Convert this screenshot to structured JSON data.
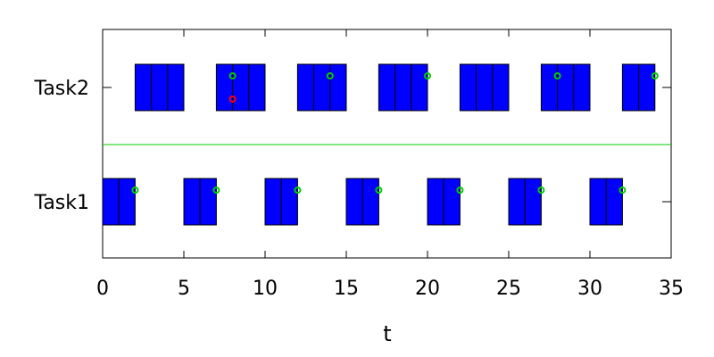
{
  "chart_data": {
    "type": "gantt",
    "title": "",
    "xlabel": "t",
    "ylabel": "",
    "xlim": [
      0,
      35
    ],
    "xticks": [
      0,
      5,
      10,
      15,
      20,
      25,
      30,
      35
    ],
    "grid": false,
    "legend": "none",
    "tasks": [
      "Task1",
      "Task2"
    ],
    "colors": {
      "execution": "#0000ff",
      "completion_marker": "#00cc00",
      "deadline_miss_marker": "#ff0000",
      "separator": "#00cc00"
    },
    "series": [
      {
        "task": "Task1",
        "segments": [
          [
            0,
            1
          ],
          [
            1,
            2
          ],
          [
            5,
            6
          ],
          [
            6,
            7
          ],
          [
            10,
            11
          ],
          [
            11,
            12
          ],
          [
            15,
            16
          ],
          [
            16,
            17
          ],
          [
            20,
            21
          ],
          [
            21,
            22
          ],
          [
            25,
            26
          ],
          [
            26,
            27
          ],
          [
            30,
            31
          ],
          [
            31,
            32
          ]
        ],
        "completion_markers": [
          2,
          7,
          12,
          17,
          22,
          27,
          32
        ]
      },
      {
        "task": "Task2",
        "segments": [
          [
            2,
            3
          ],
          [
            3,
            4
          ],
          [
            4,
            5
          ],
          [
            7,
            8
          ],
          [
            8,
            9
          ],
          [
            9,
            10
          ],
          [
            12,
            13
          ],
          [
            13,
            14
          ],
          [
            14,
            15
          ],
          [
            17,
            18
          ],
          [
            18,
            19
          ],
          [
            19,
            20
          ],
          [
            22,
            23
          ],
          [
            23,
            24
          ],
          [
            24,
            25
          ],
          [
            27,
            28
          ],
          [
            28,
            29
          ],
          [
            29,
            30
          ],
          [
            32,
            33
          ],
          [
            33,
            34
          ]
        ],
        "completion_markers": [
          8,
          14,
          20,
          28,
          34
        ],
        "deadline_miss_markers": [
          8
        ]
      }
    ]
  }
}
